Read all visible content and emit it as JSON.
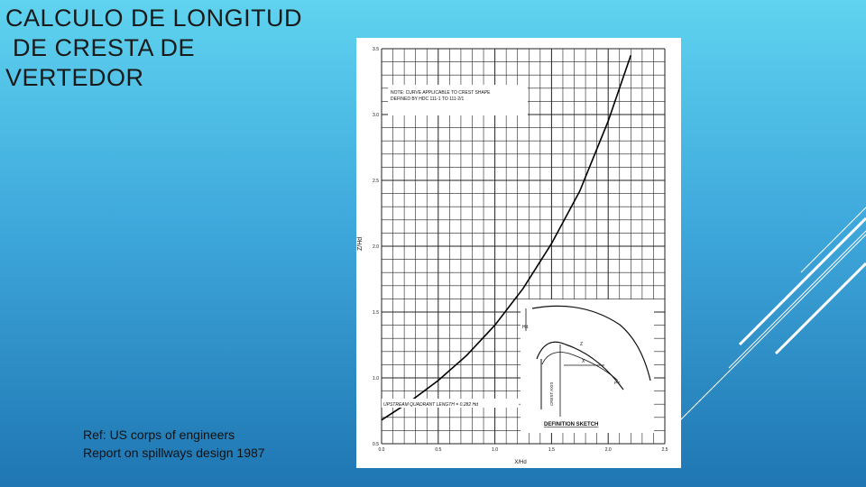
{
  "slide": {
    "title_lines": [
      "CALCULO DE LONGITUD",
      " DE CRESTA DE",
      "VERTEDOR"
    ],
    "reference_lines": [
      "Ref: US corps of engineers",
      "Report on spillways design 1987"
    ],
    "background_colors": [
      "#5fd3ef",
      "#1f76b2"
    ]
  },
  "chart_data": {
    "type": "line",
    "note": "NOTE: CURVE APPLICABLE TO CREST SHAPE DEFINED BY HDC 111-1 TO 111-2/1",
    "xlabel": "X/Hd",
    "ylabel": "Z/Hd",
    "xlim": [
      0.0,
      2.5
    ],
    "ylim": [
      0.5,
      3.5
    ],
    "x_ticks": [
      "0.0",
      "0.5",
      "1.0",
      "1.5",
      "2.0",
      "2.5"
    ],
    "y_ticks": [
      "0.5",
      "1.0",
      "1.5",
      "2.0",
      "2.5",
      "3.0",
      "3.5"
    ],
    "grid": true,
    "series": [
      {
        "x": [
          0.0,
          0.25,
          0.5,
          0.75,
          1.0,
          1.25,
          1.5,
          1.75,
          2.0,
          2.2
        ],
        "y": [
          0.68,
          0.82,
          0.98,
          1.17,
          1.4,
          1.68,
          2.02,
          2.42,
          2.95,
          3.45
        ]
      }
    ],
    "annotation": "UPSTREAM QUADRANT LENGTH = 0.282 Hd",
    "inset": {
      "title": "DEFINITION SKETCH",
      "labels": [
        "Hd",
        "Z",
        "X",
        "CREST AXIS",
        "P.T."
      ]
    }
  }
}
